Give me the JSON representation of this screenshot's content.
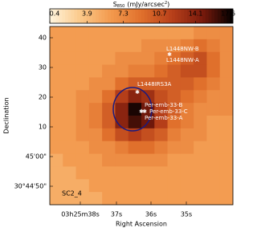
{
  "chart_data": {
    "type": "heatmap",
    "colorbar_label": {
      "main": "S",
      "sub": "850",
      "unit": "(mJy/arcsec",
      "sup": "2",
      "close": ")"
    },
    "clim": [
      0.4,
      17.6
    ],
    "cticks": [
      0.4,
      3.9,
      7.3,
      10.7,
      14.1,
      17.6
    ],
    "colormap": [
      "#fff4dc",
      "#fbc98a",
      "#f39a4e",
      "#e0702c",
      "#b8401a",
      "#7a1a0c",
      "#000000"
    ],
    "x_label": "Right Ascension",
    "y_label": "Declination",
    "x_tick_labels": [
      "03h25m38s",
      "37s",
      "36s",
      "35s"
    ],
    "y_tick_labels": [
      "40",
      "30",
      "20",
      "10",
      "45'00\"",
      "30°44'50\""
    ],
    "z": [
      [
        6,
        6,
        6,
        6,
        6,
        6,
        6,
        6,
        6,
        6,
        6,
        7,
        7,
        7
      ],
      [
        6,
        6,
        6,
        6,
        6,
        6,
        6,
        7,
        7,
        7,
        8,
        9,
        8,
        7
      ],
      [
        6,
        6,
        6,
        6,
        6,
        7,
        7,
        7,
        8,
        9,
        10,
        11,
        9,
        7
      ],
      [
        6,
        6,
        6,
        6,
        7,
        7,
        8,
        8,
        9,
        10,
        11,
        11,
        9,
        7
      ],
      [
        6,
        6,
        6,
        7,
        7,
        9,
        10,
        10,
        10,
        10,
        10,
        9,
        8,
        7
      ],
      [
        6,
        6,
        7,
        7,
        9,
        12,
        14,
        13,
        11,
        10,
        9,
        8,
        7,
        7
      ],
      [
        6,
        6,
        7,
        8,
        10,
        14,
        17,
        15,
        12,
        10,
        8,
        7,
        7,
        7
      ],
      [
        6,
        6,
        7,
        8,
        10,
        14,
        16,
        15,
        12,
        9,
        8,
        7,
        6,
        6
      ],
      [
        6,
        6,
        7,
        7,
        9,
        11,
        12,
        11,
        10,
        8,
        7,
        7,
        6,
        6
      ],
      [
        6,
        6,
        6,
        7,
        7,
        8,
        9,
        9,
        8,
        7,
        7,
        6,
        6,
        6
      ],
      [
        5,
        6,
        6,
        6,
        7,
        7,
        7,
        7,
        7,
        6,
        6,
        6,
        6,
        6
      ],
      [
        5,
        5,
        6,
        6,
        6,
        6,
        6,
        6,
        6,
        6,
        6,
        6,
        6,
        6
      ],
      [
        5,
        5,
        5,
        6,
        6,
        6,
        6,
        6,
        6,
        6,
        6,
        6,
        6,
        6
      ],
      [
        5,
        5,
        5,
        5,
        6,
        6,
        6,
        6,
        6,
        6,
        6,
        6,
        6,
        6
      ]
    ],
    "annotations": [
      "L1448NW-B",
      "L1448NW-A",
      "L1448IRS3A",
      "Per-emb-33-B",
      "Per-emb-33-C",
      "Per-emb-33-A",
      "SC2_4"
    ]
  }
}
